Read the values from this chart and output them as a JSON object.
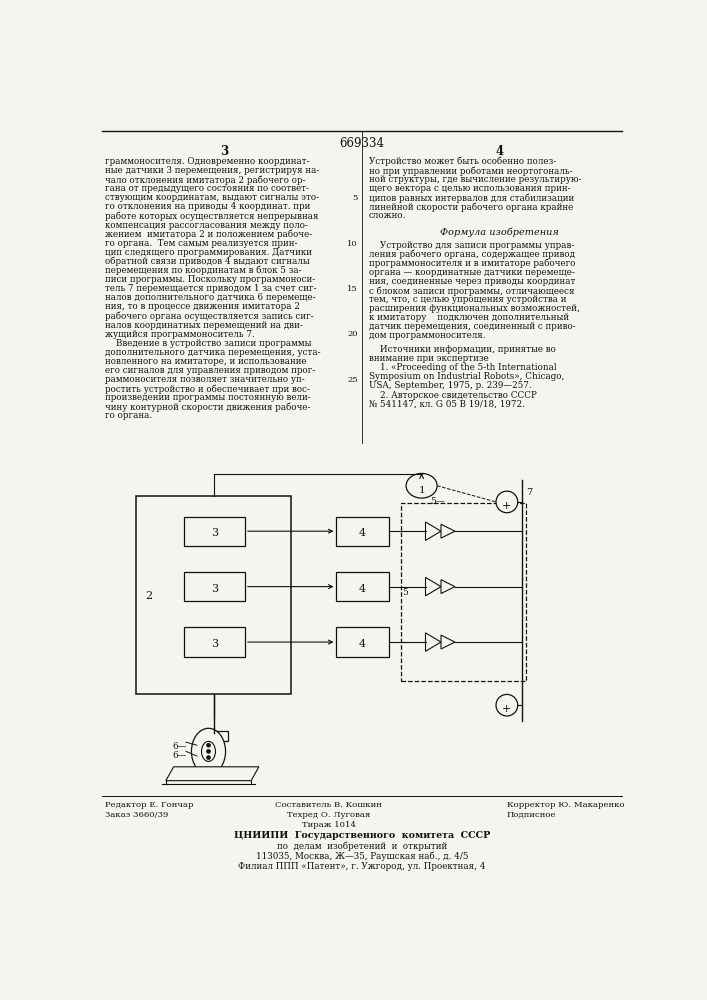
{
  "patent_number": "669334",
  "page_left": "3",
  "page_right": "4",
  "col_left_lines": [
    "граммоносителя. Одновременно координат-",
    "ные датчики 3 перемещения, регистрируя на-",
    "чало отклонения имитатора 2 рабочего ор-",
    "гана от предыдущего состояния по соответ-",
    "ствующим координатам, выдают сигналы это-",
    "го отклонения на приводы 4 координат. при",
    "работе которых осуществляется непрерывная",
    "компенсация рассогласования между поло-",
    "жением  имитатора 2 и положением рабоче-",
    "го органа.  Тем самым реализуется прин-",
    "цип следящего программирования. Датчики",
    "обратной связи приводов 4 выдают сигналы",
    "перемещения по координатам в блок 5 за-",
    "писи программы. Поскольку программоноси-",
    "тель 7 перемещается приводом 1 за счет сиг-",
    "налов дополнительного датчика 6 перемеще-",
    "ния, то в процессе движения имитатора 2",
    "рабочего органа осуществляется запись сиг-",
    "налов координатных перемещений на дви-",
    "жущийся программоноситель 7.",
    "    Введение в устройство записи программы",
    "дополнительного датчика перемещения, уста-",
    "новленного на имитаторе, и использование",
    "его сигналов для управления приводом прог-",
    "раммоносителя позволяет значительно уп-",
    "ростить устройство и обеспечивает при вос-",
    "произведении программы постоянную вели-",
    "чину контурной скорости движения рабоче-",
    "го органа."
  ],
  "line_nums": {
    "4": "5",
    "9": "10",
    "14": "15",
    "19": "20",
    "24": "25"
  },
  "col_right_top": [
    "Устройство может быть особенно полез-",
    "но при управлении роботами неортогональ-",
    "ной структуры, где вычисление результирую-",
    "щего вектора с целью использования прин-",
    "ципов равных интервалов для стабилизации",
    "линейной скорости рабочего органа крайне",
    "сложно."
  ],
  "formula_header": "Формула изобретения",
  "formula_lines": [
    "    Устройство для записи программы управ-",
    "ления рабочего органа, содержащее привод",
    "программоносителя и в имитаторе рабочего",
    "органа — координатные датчики перемеще-",
    "ния, соединенные через приводы координат",
    "с блоком записи программы, отличающееся",
    "тем, что, с целью упрощения устройства и",
    "расширения функциональных возможностей,",
    "к имитатору    подключен дополнительный",
    "датчик перемещения, соединенный с приво-",
    "дом программоносителя."
  ],
  "src_header": "    Источники информации, принятые во",
  "src_line2": "внимание при экспертизе",
  "src1": "    1. «Proceeding of the 5-th International",
  "src2": "Symposium on Industrial Robots», Chicago,",
  "src3": "USA, September, 1975, p. 239—257.",
  "src4": "    2. Авторское свидетельство СССР",
  "src5": "№ 541147, кл. G 05 B 19/18, 1972.",
  "bot_left1": "Редактор Е. Гончар",
  "bot_left2": "Заказ 3660/39",
  "bot_ctr1": "Составитель В. Кошкин",
  "bot_ctr2": "Техред О. Луговая",
  "bot_ctr3": "Тираж 1014",
  "bot_rt1": "Корректор Ю. Макаренко",
  "bot_rt2": "Подписное",
  "org1": "ЦНИИПИ  Государственного  комитета  СССР",
  "org2": "по  делам  изобретений  и  открытий",
  "org3": "113035, Москва, Ж—35, Раушская наб., д. 4/5",
  "org4": "Филиал ППП «Патент», г. Ужгород, ул. Проектная, 4",
  "bg": "#f5f5f0",
  "tc": "#111111"
}
